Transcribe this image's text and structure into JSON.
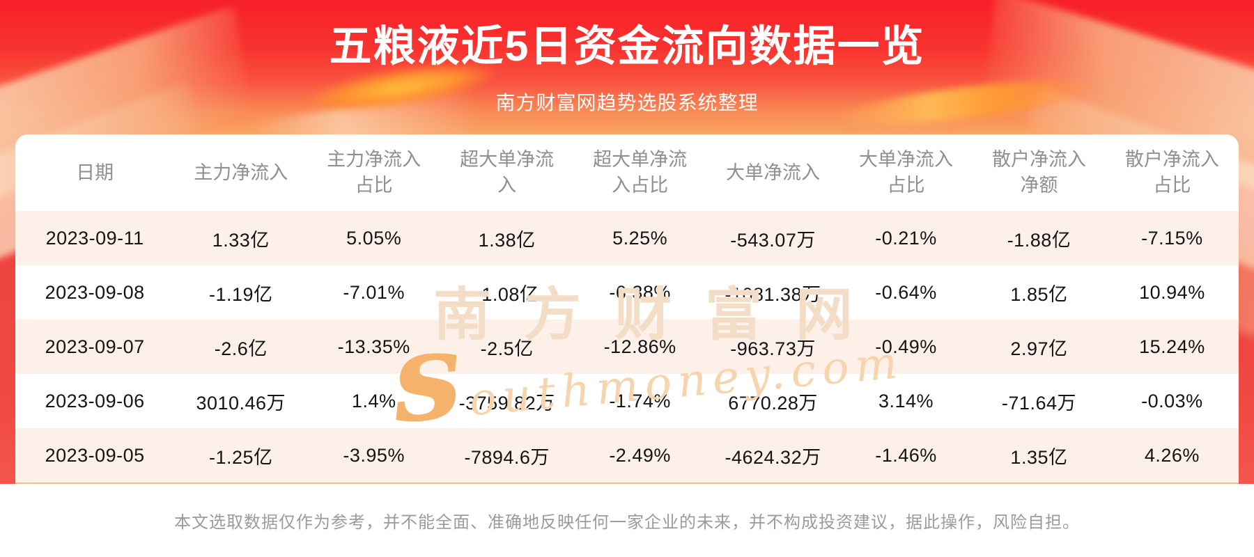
{
  "banner": {
    "title": "五粮液近5日资金流向数据一览",
    "subtitle": "南方财富网趋势选股系统整理"
  },
  "colors": {
    "banner_red_top": "#f71f28",
    "banner_orange_bottom": "#f9a263",
    "row_stripe_pink": "#fcf0e8",
    "card_bottom_line": "#f3bd85",
    "header_text": "#8f8f8f",
    "cell_text": "#141414",
    "footer_text": "#9b9b9b",
    "title_text": "#ffffff"
  },
  "watermark": {
    "cn": "南方财富网",
    "en": "southmoney.com"
  },
  "table": {
    "headers": [
      {
        "line1": "日期",
        "line2": ""
      },
      {
        "line1": "主力净流入",
        "line2": ""
      },
      {
        "line1": "主力净流入",
        "line2": "占比"
      },
      {
        "line1": "超大单净流",
        "line2": "入"
      },
      {
        "line1": "超大单净流",
        "line2": "入占比"
      },
      {
        "line1": "大单净流入",
        "line2": ""
      },
      {
        "line1": "大单净流入",
        "line2": "占比"
      },
      {
        "line1": "散户净流入",
        "line2": "净额"
      },
      {
        "line1": "散户净流入",
        "line2": "占比"
      }
    ],
    "rows": [
      [
        "2023-09-11",
        "1.33亿",
        "5.05%",
        "1.38亿",
        "5.25%",
        "-543.07万",
        "-0.21%",
        "-1.88亿",
        "-7.15%"
      ],
      [
        "2023-09-08",
        "-1.19亿",
        "-7.01%",
        "-1.08亿",
        "-6.38%",
        "-1081.38万",
        "-0.64%",
        "1.85亿",
        "10.94%"
      ],
      [
        "2023-09-07",
        "-2.6亿",
        "-13.35%",
        "-2.5亿",
        "-12.86%",
        "-963.73万",
        "-0.49%",
        "2.97亿",
        "15.24%"
      ],
      [
        "2023-09-06",
        "3010.46万",
        "1.4%",
        "-3759.82万",
        "-1.74%",
        "6770.28万",
        "3.14%",
        "-71.64万",
        "-0.03%"
      ],
      [
        "2023-09-05",
        "-1.25亿",
        "-3.95%",
        "-7894.6万",
        "-2.49%",
        "-4624.32万",
        "-1.46%",
        "1.35亿",
        "4.26%"
      ]
    ]
  },
  "footer": {
    "disclaimer": "本文选取数据仅作为参考，并不能全面、准确地反映任何一家企业的未来，并不构成投资建议，据此操作，风险自担。"
  },
  "chart_data": {
    "type": "table",
    "title": "五粮液近5日资金流向数据一览",
    "subtitle": "南方财富网趋势选股系统整理",
    "columns": [
      "日期",
      "主力净流入",
      "主力净流入占比",
      "超大单净流入",
      "超大单净流入占比",
      "大单净流入",
      "大单净流入占比",
      "散户净流入净额",
      "散户净流入占比"
    ],
    "rows": [
      [
        "2023-09-11",
        "1.33亿",
        "5.05%",
        "1.38亿",
        "5.25%",
        "-543.07万",
        "-0.21%",
        "-1.88亿",
        "-7.15%"
      ],
      [
        "2023-09-08",
        "-1.19亿",
        "-7.01%",
        "-1.08亿",
        "-6.38%",
        "-1081.38万",
        "-0.64%",
        "1.85亿",
        "10.94%"
      ],
      [
        "2023-09-07",
        "-2.6亿",
        "-13.35%",
        "-2.5亿",
        "-12.86%",
        "-963.73万",
        "-0.49%",
        "2.97亿",
        "15.24%"
      ],
      [
        "2023-09-06",
        "3010.46万",
        "1.4%",
        "-3759.82万",
        "-1.74%",
        "6770.28万",
        "3.14%",
        "-71.64万",
        "-0.03%"
      ],
      [
        "2023-09-05",
        "-1.25亿",
        "-3.95%",
        "-7894.6万",
        "-2.49%",
        "-4624.32万",
        "-1.46%",
        "1.35亿",
        "4.26%"
      ]
    ]
  }
}
